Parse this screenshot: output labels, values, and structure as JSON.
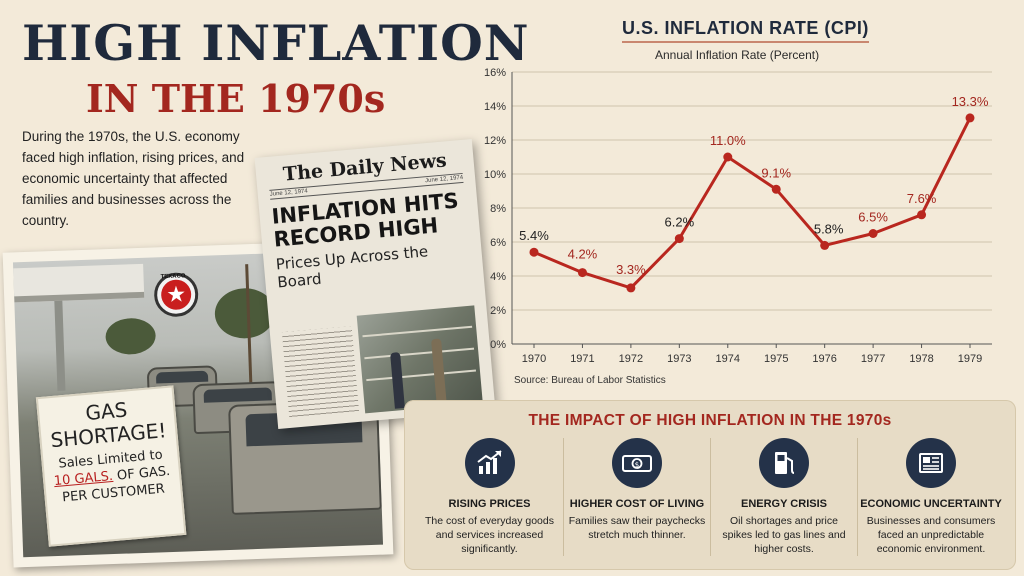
{
  "header": {
    "title_line1": "HIGH INFLATION",
    "title_line2": "IN THE 1970s",
    "intro": "During the 1970s, the U.S. economy faced high inflation, rising prices, and economic uncertainty that affected families and businesses across the country."
  },
  "photo": {
    "brand_sign": "TEXACO",
    "sign_line1": "GAS",
    "sign_line2": "SHORTAGE!",
    "sign_line3": "Sales Limited to",
    "sign_line4_highlight": "10 GALS.",
    "sign_line4_rest": " OF GAS.",
    "sign_line5": "PER CUSTOMER"
  },
  "newspaper": {
    "masthead": "The Daily News",
    "date_left": "June 12, 1974",
    "date_right": "June 12, 1974",
    "headline": "INFLATION HITS RECORD HIGH",
    "subhead": "Prices Up Across the Board"
  },
  "chart_data": {
    "type": "line",
    "title": "U.S. INFLATION RATE (CPI)",
    "subtitle": "Annual Inflation Rate (Percent)",
    "categories": [
      "1970",
      "1971",
      "1972",
      "1973",
      "1974",
      "1975",
      "1976",
      "1977",
      "1978",
      "1979"
    ],
    "values": [
      5.4,
      4.2,
      3.3,
      6.2,
      11.0,
      9.1,
      5.8,
      6.5,
      7.6,
      13.3
    ],
    "data_labels": [
      "5.4%",
      "4.2%",
      "3.3%",
      "6.2%",
      "11.0%",
      "9.1%",
      "5.8%",
      "6.5%",
      "7.6%",
      "13.3%"
    ],
    "label_colors": [
      "#222222",
      "#a3271f",
      "#a3271f",
      "#222222",
      "#a3271f",
      "#a3271f",
      "#222222",
      "#a3271f",
      "#a3271f",
      "#a3271f"
    ],
    "yticks": [
      0,
      2,
      4,
      6,
      8,
      10,
      12,
      14,
      16
    ],
    "ytick_labels": [
      "0%",
      "2%",
      "4%",
      "6%",
      "8%",
      "10%",
      "12%",
      "14%",
      "16%"
    ],
    "ylim": [
      0,
      16
    ],
    "grid": true,
    "line_color": "#b9271f",
    "source": "Source: Bureau of Labor Statistics"
  },
  "impact": {
    "title": "THE IMPACT OF HIGH INFLATION IN THE 1970s",
    "items": [
      {
        "icon": "rising-chart-icon",
        "title": "RISING PRICES",
        "desc": "The cost of everyday goods and services increased significantly."
      },
      {
        "icon": "money-bill-icon",
        "title": "HIGHER COST OF LIVING",
        "desc": "Families saw their paychecks stretch much thinner."
      },
      {
        "icon": "gas-pump-icon",
        "title": "ENERGY CRISIS",
        "desc": "Oil shortages and price spikes led to gas lines and higher costs."
      },
      {
        "icon": "newspaper-icon",
        "title": "ECONOMIC UNCERTAINTY",
        "desc": "Businesses and consumers faced an unpredictable economic environment."
      }
    ]
  }
}
